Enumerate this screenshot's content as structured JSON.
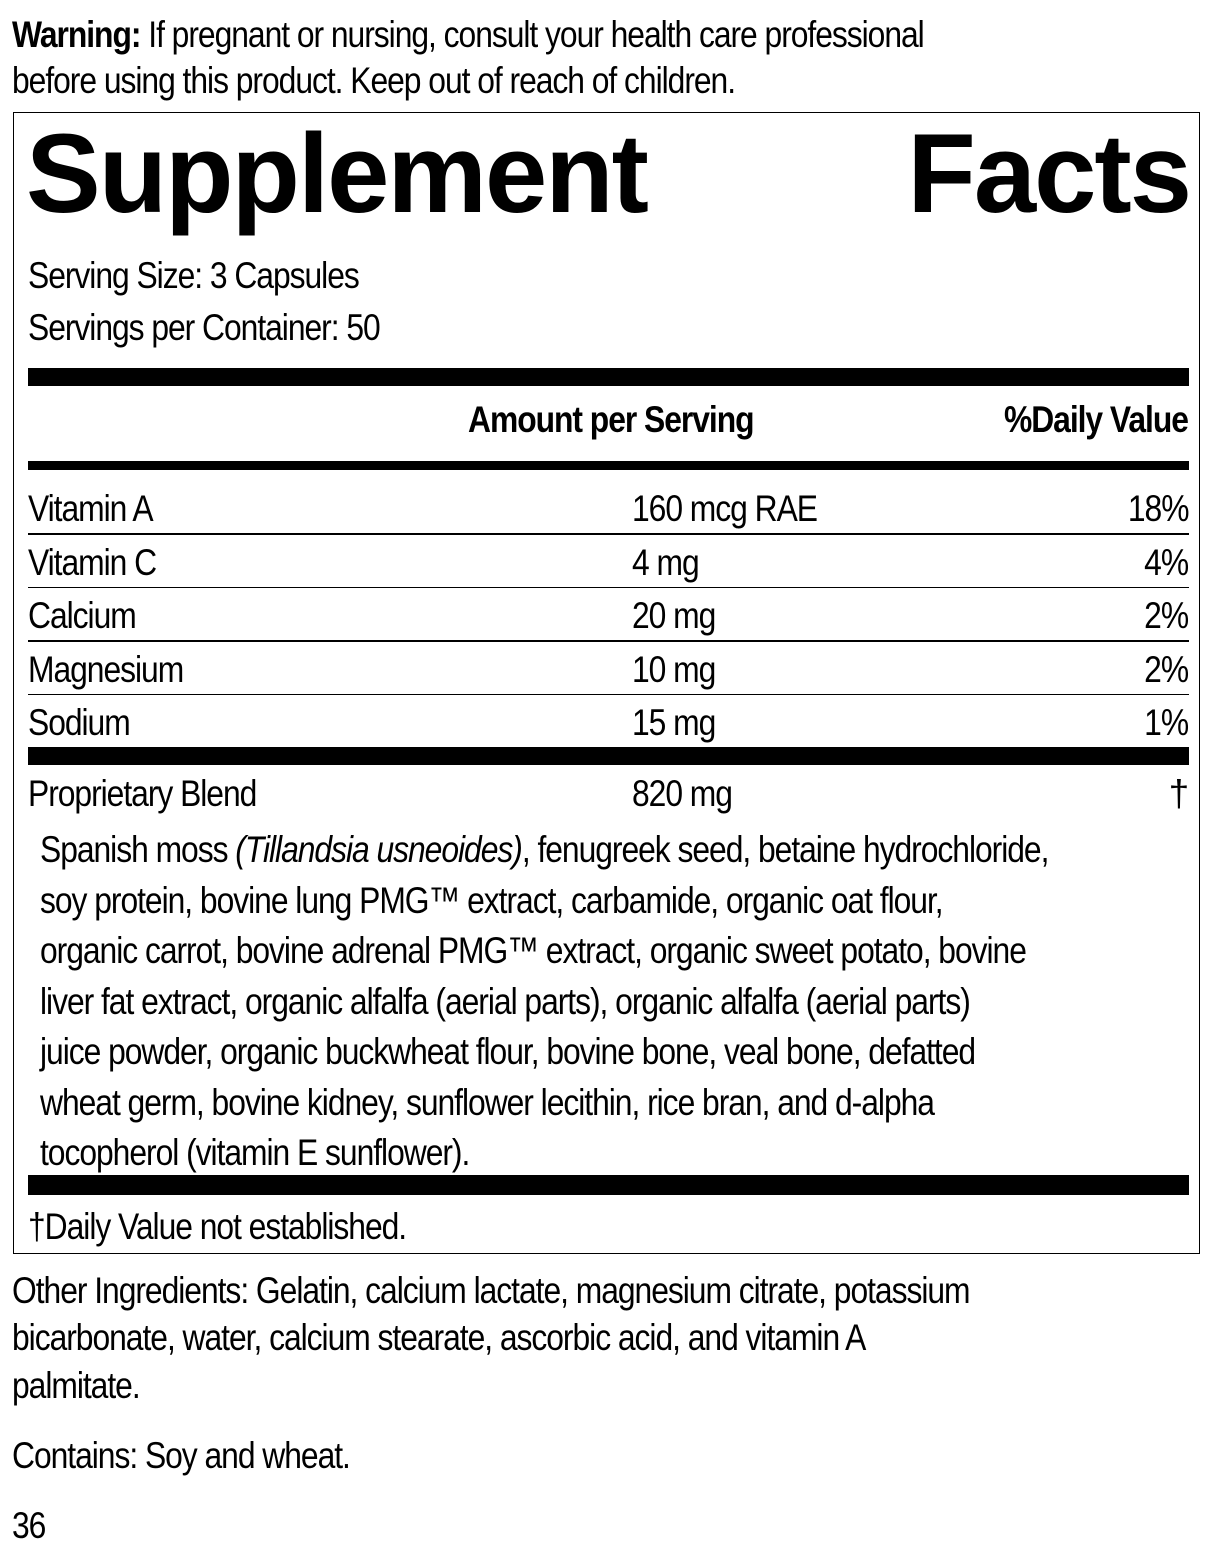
{
  "warning": {
    "label": "Warning:",
    "line1": "If pregnant or nursing, consult your health care professional",
    "line2": "before using this product. Keep out of reach of children."
  },
  "facts": {
    "title_word1": "Supplement",
    "title_word2": "Facts",
    "serving_size": "Serving Size: 3 Capsules",
    "servings_per_container": "Servings per Container: 50",
    "header": {
      "amount": "Amount per Serving",
      "daily_value": "%Daily Value"
    },
    "rows": [
      {
        "name": "Vitamin A",
        "amount": "160 mcg RAE",
        "dv": "18%"
      },
      {
        "name": "Vitamin C",
        "amount": "4 mg",
        "dv": "4%"
      },
      {
        "name": "Calcium",
        "amount": "20 mg",
        "dv": "2%"
      },
      {
        "name": "Magnesium",
        "amount": "10 mg",
        "dv": "2%"
      },
      {
        "name": "Sodium",
        "amount": "15 mg",
        "dv": "1%"
      }
    ],
    "blend": {
      "name": "Proprietary Blend",
      "amount": "820 mg",
      "dv": "†",
      "lines": [
        "Spanish moss ",
        "soy protein, bovine lung PMG™ extract, carbamide, organic oat flour,",
        "organic carrot, bovine adrenal PMG™ extract, organic sweet potato, bovine",
        "liver fat extract, organic alfalfa (aerial parts), organic alfalfa (aerial parts)",
        "juice powder, organic buckwheat flour, bovine bone, veal bone, defatted",
        "wheat germ, bovine kidney, sunflower lecithin, rice bran, and d-alpha",
        "tocopherol (vitamin E sunflower)."
      ],
      "line1_italic": "(Tillandsia usneoides)",
      "line1_rest": ", fenugreek seed, betaine hydrochloride,"
    },
    "footnote": "†Daily Value not established."
  },
  "other_ingredients": {
    "line1": "Other Ingredients: Gelatin, calcium lactate, magnesium citrate, potassium",
    "line2": "bicarbonate, water, calcium stearate, ascorbic acid, and vitamin A",
    "line3": "palmitate."
  },
  "contains": "Contains: Soy and wheat.",
  "page_number": "36"
}
